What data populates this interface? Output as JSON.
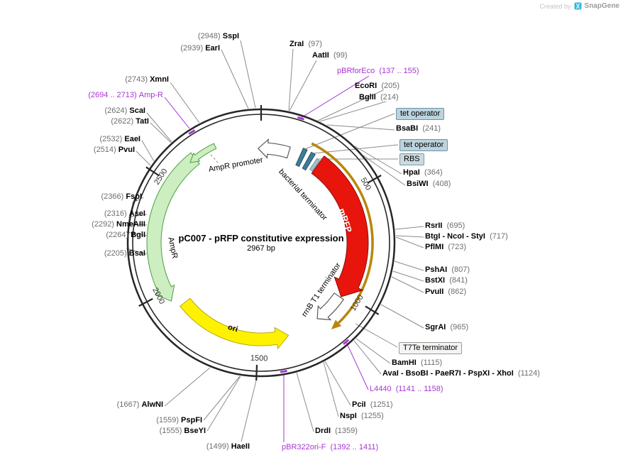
{
  "watermark": {
    "created_by": "Created by",
    "brand": "SnapGene"
  },
  "plasmid": {
    "title": "pC007 - pRFP constitutive expression",
    "length": "2967 bp"
  },
  "ticks": {
    "t500": "500",
    "t1000": "1000",
    "t1500": "1500",
    "t2000": "2000",
    "t2500": "2500"
  },
  "features": {
    "ampr_promoter": "AmpR promoter",
    "ampr": "AmpR",
    "ori": "ori",
    "mrfp": "mRFP",
    "bacterial_terminator": "bacterial terminator",
    "rrnb_terminator": "rrnB T1 terminator"
  },
  "boxed_labels": {
    "tet_operator_1": "tet operator",
    "tet_operator_2": "tet operator",
    "rbs": "RBS",
    "t7te": "T7Te terminator"
  },
  "site_labels": {
    "sspi": {
      "pos": "(2948)",
      "name": "SspI"
    },
    "eari": {
      "pos": "(2939)",
      "name": "EarI"
    },
    "xmni": {
      "pos": "(2743)",
      "name": "XmnI"
    },
    "ampr_primer": {
      "pos": "(2694 .. 2713)",
      "name": "Amp-R",
      "primer": true
    },
    "scai": {
      "pos": "(2624)",
      "name": "ScaI"
    },
    "tati": {
      "pos": "(2622)",
      "name": "TatI"
    },
    "eaei": {
      "pos": "(2532)",
      "name": "EaeI"
    },
    "pvui": {
      "pos": "(2514)",
      "name": "PvuI"
    },
    "fspi": {
      "pos": "(2366)",
      "name": "FspI"
    },
    "asei": {
      "pos": "(2316)",
      "name": "AseI"
    },
    "nmeaiii": {
      "pos": "(2292)",
      "name": "NmeAIII"
    },
    "bgli": {
      "pos": "(2264)",
      "name": "BglI"
    },
    "bsai": {
      "pos": "(2205)",
      "name": "BsaI"
    },
    "alwni": {
      "pos": "(1667)",
      "name": "AlwNI"
    },
    "pspfi": {
      "pos": "(1559)",
      "name": "PspFI"
    },
    "bseyi": {
      "pos": "(1555)",
      "name": "BseYI"
    },
    "haeii": {
      "pos": "(1499)",
      "name": "HaeII"
    },
    "zrai": {
      "name": "ZraI",
      "pos": "(97)"
    },
    "aatii": {
      "name": "AatII",
      "pos": "(99)"
    },
    "pbrforeco": {
      "name": "pBRforEco",
      "pos": "(137 .. 155)",
      "primer": true
    },
    "ecori": {
      "name": "EcoRI",
      "pos": "(205)"
    },
    "bglii": {
      "name": "BglII",
      "pos": "(214)"
    },
    "bsabi": {
      "name": "BsaBI",
      "pos": "(241)"
    },
    "hpai": {
      "name": "HpaI",
      "pos": "(364)"
    },
    "bsiwi": {
      "name": "BsiWI",
      "pos": "(408)"
    },
    "rsrii": {
      "name": "RsrII",
      "pos": "(695)"
    },
    "btgi": {
      "name": "BtgI - NcoI - StyI",
      "pos": "(717)"
    },
    "pflmi": {
      "name": "PflMI",
      "pos": "(723)"
    },
    "pshai": {
      "name": "PshAI",
      "pos": "(807)"
    },
    "bstxi": {
      "name": "BstXI",
      "pos": "(841)"
    },
    "pvuii": {
      "name": "PvuII",
      "pos": "(862)"
    },
    "sgrai": {
      "name": "SgrAI",
      "pos": "(965)"
    },
    "bamhi": {
      "name": "BamHI",
      "pos": "(1115)"
    },
    "avai": {
      "name": "AvaI - BsoBI - PaeR7I - PspXI - XhoI",
      "pos": "(1124)"
    },
    "l4440": {
      "name": "L4440",
      "pos": "(1141 .. 1158)",
      "primer": true
    },
    "pcii": {
      "name": "PciI",
      "pos": "(1251)"
    },
    "nspi": {
      "name": "NspI",
      "pos": "(1255)"
    },
    "drdi": {
      "name": "DrdI",
      "pos": "(1359)"
    },
    "pbr322orif": {
      "name": "pBR322ori-F",
      "pos": "(1392 .. 1411)",
      "primer": true
    }
  },
  "colors": {
    "primer_purple": "#A636D2",
    "mrfp_red": "#E8150D",
    "ori_yellow": "#FFF200",
    "ampr_green": "#CDEEC0",
    "cassette_orange": "#B8860B",
    "tet_operator_teal": "#3E7D96",
    "backbone_dark": "#262626"
  }
}
